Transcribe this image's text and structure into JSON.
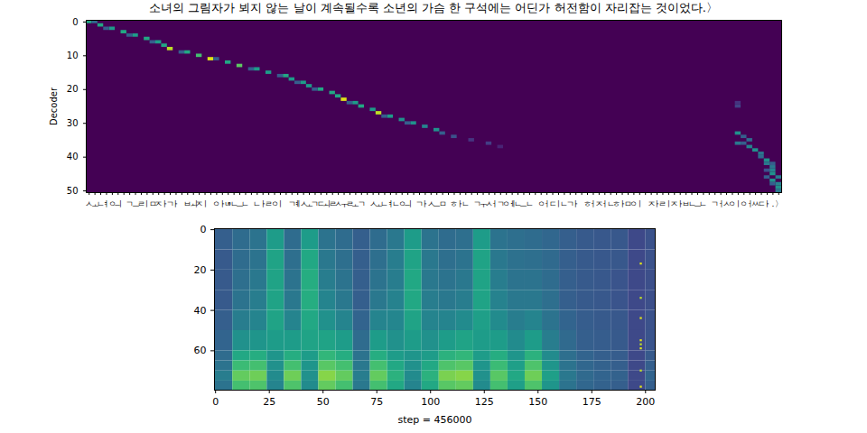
{
  "chart_data": [
    {
      "type": "heatmap",
      "title": "소녀의 그림자가 뵈지 않는 날이 계속될수록 소년의 가슴 한 구석에는 어딘가 허전함이 자리잡는 것이었다.〉",
      "ylabel": "Decoder",
      "categories": [
        "ㅅ",
        "ㅗ",
        "ㄴ",
        "ㅕ",
        "ㅇ",
        "ㅢ",
        " ",
        "ㄱ",
        "ㅡ",
        "ㄹ",
        "ㅣ",
        "ㅁ",
        "ㅈ",
        "ㅏ",
        "ㄱ",
        "ㅏ",
        " ",
        "ㅂ",
        "ㅚ",
        "ㅈ",
        "ㅣ",
        " ",
        "ㅇ",
        "ㅏ",
        "ㄶ",
        "ㄴ",
        "ㅡ",
        "ㄴ",
        " ",
        "ㄴ",
        "ㅏ",
        "ㄹ",
        "ㅇ",
        "ㅣ",
        " ",
        "ㄱ",
        "ㅖ",
        "ㅅ",
        "ㅗ",
        "ㄱ",
        "ㄷ",
        "ㅚ",
        "ㄹ",
        "ㅅ",
        "ㅜ",
        "ㄹ",
        "ㅗ",
        "ㄱ",
        " ",
        "ㅅ",
        "ㅗ",
        "ㄴ",
        "ㅕ",
        "ㄴ",
        "ㅇ",
        "ㅢ",
        " ",
        "ㄱ",
        "ㅏ",
        "ㅅ",
        "ㅡ",
        "ㅁ",
        " ",
        "ㅎ",
        "ㅏ",
        "ㄴ",
        " ",
        "ㄱ",
        "ㅜ",
        "ㅅ",
        "ㅓ",
        "ㄱ",
        "ㅇ",
        "ㅔ",
        "ㄴ",
        "ㅡ",
        "ㄴ",
        " ",
        "ㅇ",
        "ㅓ",
        "ㄷ",
        "ㅣ",
        "ㄴ",
        "ㄱ",
        "ㅏ",
        " ",
        "ㅎ",
        "ㅓ",
        "ㅈ",
        "ㅓ",
        "ㄴ",
        "ㅎ",
        "ㅏ",
        "ㅁ",
        "ㅇ",
        "ㅣ",
        " ",
        "ㅈ",
        "ㅏ",
        "ㄹ",
        "ㅣ",
        "ㅈ",
        "ㅏ",
        "ㅂ",
        "ㄴ",
        "ㅡ",
        "ㄴ",
        " ",
        "ㄱ",
        "ㅓ",
        "ㅅ",
        "ㅇ",
        "ㅣ",
        "ㅇ",
        "ㅓ",
        "ㅆ",
        "ㄷ",
        "ㅏ",
        ".",
        "〉"
      ],
      "xlim": [
        -0.5,
        119.5
      ],
      "ylim": [
        -0.5,
        50.5
      ],
      "yticks": [
        0,
        10,
        20,
        30,
        40,
        50
      ],
      "color_range": [
        0,
        1
      ],
      "cells": [
        [
          0,
          0,
          0.6
        ],
        [
          0,
          1,
          0.35
        ],
        [
          1,
          2,
          0.6
        ],
        [
          2,
          4,
          0.55
        ],
        [
          2,
          3,
          0.3
        ],
        [
          3,
          6,
          0.6
        ],
        [
          4,
          8,
          0.55
        ],
        [
          4,
          7,
          0.3
        ],
        [
          5,
          10,
          0.6
        ],
        [
          6,
          12,
          0.55
        ],
        [
          6,
          11,
          0.3
        ],
        [
          7,
          13,
          0.6
        ],
        [
          8,
          14,
          0.9
        ],
        [
          9,
          17,
          0.6
        ],
        [
          9,
          16,
          0.3
        ],
        [
          10,
          19,
          0.7
        ],
        [
          11,
          21,
          0.95
        ],
        [
          11,
          22,
          0.3
        ],
        [
          12,
          24,
          0.6
        ],
        [
          13,
          26,
          0.75
        ],
        [
          14,
          29,
          0.55
        ],
        [
          14,
          28,
          0.3
        ],
        [
          15,
          31,
          0.55
        ],
        [
          16,
          34,
          0.6
        ],
        [
          16,
          33,
          0.3
        ],
        [
          17,
          35,
          0.55
        ],
        [
          18,
          37,
          0.55
        ],
        [
          18,
          36,
          0.3
        ],
        [
          19,
          38,
          0.55
        ],
        [
          20,
          40,
          0.6
        ],
        [
          20,
          39,
          0.3
        ],
        [
          21,
          42,
          0.6
        ],
        [
          22,
          43,
          0.6
        ],
        [
          23,
          44,
          0.95
        ],
        [
          24,
          46,
          0.55
        ],
        [
          24,
          45,
          0.3
        ],
        [
          25,
          47,
          0.6
        ],
        [
          26,
          49,
          0.55
        ],
        [
          27,
          50,
          0.9
        ],
        [
          28,
          52,
          0.55
        ],
        [
          28,
          51,
          0.3
        ],
        [
          29,
          54,
          0.5
        ],
        [
          30,
          56,
          0.5
        ],
        [
          30,
          55,
          0.3
        ],
        [
          31,
          58,
          0.45
        ],
        [
          32,
          60,
          0.5
        ],
        [
          33,
          61,
          0.3
        ],
        [
          34,
          63,
          0.25
        ],
        [
          35,
          66,
          0.15
        ],
        [
          36,
          69,
          0.18
        ],
        [
          37,
          71,
          0.1
        ],
        [
          24,
          112,
          0.15
        ],
        [
          25,
          112,
          0.2
        ],
        [
          33,
          112,
          0.5
        ],
        [
          34,
          113,
          0.3
        ],
        [
          35,
          114,
          0.35
        ],
        [
          36,
          112,
          0.4
        ],
        [
          36,
          113,
          0.3
        ],
        [
          37,
          114,
          0.45
        ],
        [
          38,
          115,
          0.5
        ],
        [
          39,
          116,
          0.4
        ],
        [
          40,
          116,
          0.35
        ],
        [
          41,
          117,
          0.5
        ],
        [
          42,
          117,
          0.4
        ],
        [
          42,
          118,
          0.3
        ],
        [
          43,
          118,
          0.4
        ],
        [
          44,
          117,
          0.25
        ],
        [
          44,
          118,
          0.45
        ],
        [
          45,
          118,
          0.5
        ],
        [
          46,
          117,
          0.3
        ],
        [
          46,
          119,
          0.4
        ],
        [
          47,
          118,
          0.5
        ],
        [
          48,
          118,
          0.3
        ],
        [
          48,
          119,
          0.45
        ],
        [
          49,
          119,
          0.5
        ],
        [
          50,
          119,
          0.4
        ]
      ]
    },
    {
      "type": "heatmap",
      "xlabel": "step = 456000",
      "xlim": [
        -0.5,
        204.5
      ],
      "xticks": [
        0,
        25,
        50,
        75,
        100,
        125,
        150,
        175,
        200
      ],
      "ylim": [
        -0.5,
        79.5
      ],
      "yticks": [
        0,
        20,
        40,
        60
      ],
      "color_range": [
        0,
        1
      ],
      "x_edges": [
        -0.5,
        8,
        16,
        24,
        32,
        40,
        48,
        56,
        64,
        72,
        80,
        88,
        96,
        104,
        112,
        120,
        128,
        136,
        144,
        152,
        160,
        168,
        176,
        184,
        192,
        200,
        204.5
      ],
      "y_edges": [
        -0.5,
        10,
        20,
        30,
        40,
        50,
        60,
        65,
        70,
        75,
        79.5
      ],
      "values": [
        [
          0.3,
          0.35,
          0.38,
          0.55,
          0.35,
          0.55,
          0.38,
          0.35,
          0.3,
          0.35,
          0.4,
          0.55,
          0.38,
          0.35,
          0.36,
          0.55,
          0.38,
          0.36,
          0.35,
          0.33,
          0.3,
          0.28,
          0.27,
          0.27,
          0.22,
          0.25
        ],
        [
          0.28,
          0.35,
          0.38,
          0.58,
          0.36,
          0.6,
          0.4,
          0.36,
          0.3,
          0.36,
          0.42,
          0.58,
          0.4,
          0.36,
          0.38,
          0.58,
          0.4,
          0.37,
          0.36,
          0.34,
          0.3,
          0.28,
          0.27,
          0.27,
          0.22,
          0.25
        ],
        [
          0.28,
          0.36,
          0.4,
          0.58,
          0.38,
          0.62,
          0.42,
          0.38,
          0.3,
          0.38,
          0.42,
          0.6,
          0.4,
          0.38,
          0.4,
          0.58,
          0.42,
          0.38,
          0.38,
          0.35,
          0.3,
          0.28,
          0.27,
          0.26,
          0.22,
          0.24
        ],
        [
          0.28,
          0.38,
          0.42,
          0.58,
          0.4,
          0.62,
          0.45,
          0.4,
          0.3,
          0.4,
          0.44,
          0.6,
          0.42,
          0.4,
          0.42,
          0.58,
          0.44,
          0.4,
          0.4,
          0.36,
          0.3,
          0.28,
          0.27,
          0.26,
          0.22,
          0.24
        ],
        [
          0.3,
          0.42,
          0.45,
          0.58,
          0.45,
          0.6,
          0.5,
          0.45,
          0.32,
          0.45,
          0.46,
          0.58,
          0.45,
          0.45,
          0.48,
          0.56,
          0.48,
          0.42,
          0.45,
          0.38,
          0.32,
          0.29,
          0.28,
          0.27,
          0.22,
          0.25
        ],
        [
          0.32,
          0.5,
          0.52,
          0.55,
          0.55,
          0.58,
          0.58,
          0.55,
          0.35,
          0.55,
          0.5,
          0.55,
          0.5,
          0.55,
          0.58,
          0.55,
          0.55,
          0.48,
          0.55,
          0.42,
          0.34,
          0.3,
          0.29,
          0.28,
          0.22,
          0.26
        ],
        [
          0.35,
          0.6,
          0.62,
          0.52,
          0.62,
          0.55,
          0.66,
          0.62,
          0.38,
          0.62,
          0.55,
          0.52,
          0.55,
          0.64,
          0.66,
          0.55,
          0.62,
          0.52,
          0.64,
          0.48,
          0.36,
          0.32,
          0.3,
          0.29,
          0.22,
          0.28
        ],
        [
          0.38,
          0.68,
          0.7,
          0.5,
          0.7,
          0.52,
          0.74,
          0.7,
          0.4,
          0.7,
          0.6,
          0.5,
          0.6,
          0.72,
          0.74,
          0.52,
          0.68,
          0.56,
          0.72,
          0.52,
          0.38,
          0.33,
          0.31,
          0.3,
          0.22,
          0.3
        ],
        [
          0.42,
          0.76,
          0.78,
          0.48,
          0.78,
          0.5,
          0.82,
          0.76,
          0.42,
          0.76,
          0.64,
          0.48,
          0.64,
          0.8,
          0.82,
          0.5,
          0.74,
          0.6,
          0.78,
          0.56,
          0.4,
          0.34,
          0.32,
          0.31,
          0.22,
          0.32
        ],
        [
          0.38,
          0.7,
          0.72,
          0.45,
          0.72,
          0.48,
          0.76,
          0.7,
          0.4,
          0.7,
          0.6,
          0.45,
          0.6,
          0.74,
          0.76,
          0.48,
          0.7,
          0.56,
          0.72,
          0.52,
          0.38,
          0.33,
          0.31,
          0.3,
          0.22,
          0.3
        ]
      ],
      "highlights": [
        [
          198,
          17,
          0.95
        ],
        [
          198,
          34,
          0.9
        ],
        [
          198,
          44,
          0.95
        ],
        [
          198,
          55,
          0.95
        ],
        [
          198,
          57,
          0.9
        ],
        [
          198,
          59,
          0.95
        ],
        [
          198,
          70,
          0.9
        ],
        [
          198,
          78,
          0.95
        ]
      ]
    }
  ]
}
